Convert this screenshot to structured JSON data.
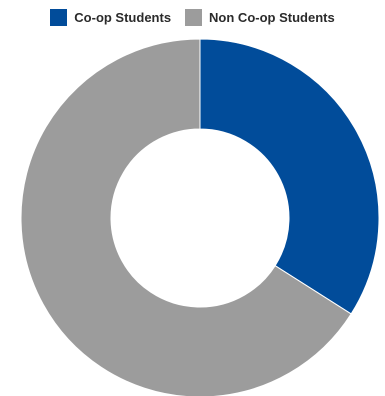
{
  "chart_data": {
    "type": "pie",
    "variant": "donut",
    "title": "",
    "legend_position": "top",
    "series": [
      {
        "name": "Co-op Students",
        "value": 34,
        "color": "#014c9a"
      },
      {
        "name": "Non Co-op Students",
        "value": 66,
        "color": "#9c9c9c"
      }
    ]
  }
}
